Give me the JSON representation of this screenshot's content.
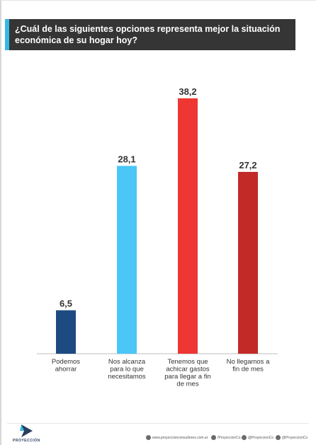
{
  "title": "¿Cuál de las siguientes opciones representa mejor la situación económica de su hogar hoy?",
  "colors": {
    "title_bg": "#353535",
    "title_accent": "#35b8e4"
  },
  "chart_data": {
    "type": "bar",
    "categories": [
      [
        "Podemos",
        "ahorrar"
      ],
      [
        "Nos alcanza",
        "para lo que",
        "necesitamos"
      ],
      [
        "Tenemos que",
        "achicar gastos",
        "para llegar a fin",
        "de mes"
      ],
      [
        "No llegamos a",
        "fin de mes"
      ]
    ],
    "values": [
      6.5,
      28.1,
      38.2,
      27.2
    ],
    "value_labels": [
      "6,5",
      "28,1",
      "38,2",
      "27,2"
    ],
    "bar_colors": [
      "#1e4a82",
      "#4bc6f7",
      "#ee3733",
      "#c22a28"
    ],
    "ylim": [
      0,
      38.2
    ],
    "grid": false,
    "legend": "none"
  },
  "footer": {
    "logo_text": "PROYECCIÓN",
    "website": "www.proyeccionconsultores.com.ar",
    "facebook": "/ProyeccionCo",
    "twitter": "@ProyeccionCo",
    "instagram": "@ProyeccionCo",
    "icons": [
      "globe-icon",
      "facebook-icon",
      "twitter-icon",
      "instagram-icon"
    ]
  }
}
